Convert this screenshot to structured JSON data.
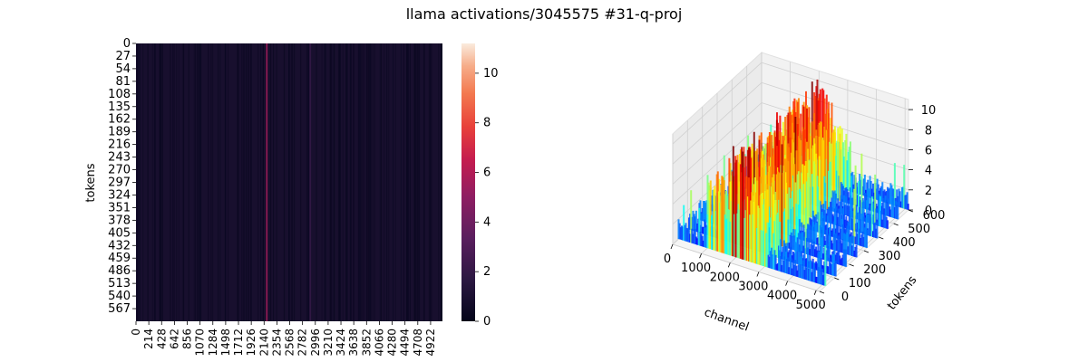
{
  "figure": {
    "suptitle": "llama activations/3045575 #31-q-proj"
  },
  "chart_data": [
    {
      "type": "heatmap",
      "title": "",
      "xlabel": "",
      "ylabel": "tokens",
      "x_ticks": [
        0,
        214,
        428,
        642,
        856,
        1070,
        1284,
        1498,
        1712,
        1926,
        2140,
        2354,
        2568,
        2782,
        2996,
        3210,
        3424,
        3638,
        3852,
        4066,
        4280,
        4494,
        4708,
        4922
      ],
      "y_ticks": [
        0,
        27,
        54,
        81,
        108,
        135,
        162,
        189,
        216,
        243,
        270,
        297,
        324,
        351,
        378,
        405,
        432,
        459,
        486,
        513,
        540,
        567
      ],
      "xlim": [
        0,
        5120
      ],
      "ylim": [
        0,
        594
      ],
      "colormap": "rocket",
      "colorbar": {
        "min": 0,
        "max": 11.2,
        "ticks": [
          0,
          2,
          4,
          6,
          8,
          10
        ]
      },
      "background_level": 0.3,
      "hot_channels": [
        {
          "channel": 2184,
          "value": 5.5
        },
        {
          "channel": 2910,
          "value": 2.0
        }
      ]
    },
    {
      "type": "surface3d",
      "title": "",
      "xlabel": "channel",
      "ylabel": "tokens",
      "zlabel": "",
      "x_ticks": [
        0,
        1000,
        2000,
        3000,
        4000,
        5000
      ],
      "y_ticks": [
        0,
        100,
        200,
        300,
        400,
        500,
        600
      ],
      "z_ticks": [
        0,
        2,
        4,
        6,
        8,
        10
      ],
      "xlim": [
        0,
        5120
      ],
      "ylim": [
        0,
        600
      ],
      "zlim": [
        0,
        11
      ],
      "colormap": "jet",
      "grid": true,
      "peak_band": {
        "channel_start": 1000,
        "channel_end": 3100,
        "peak_value": 10.5
      },
      "baseline_level": 1.0
    }
  ]
}
